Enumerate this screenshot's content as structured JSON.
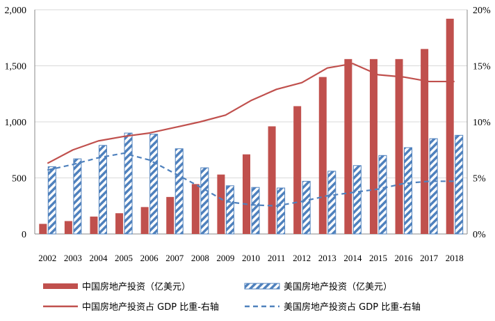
{
  "chart_data": {
    "type": "bar",
    "title": "",
    "categories": [
      "2002",
      "2003",
      "2004",
      "2005",
      "2006",
      "2007",
      "2008",
      "2009",
      "2010",
      "2011",
      "2012",
      "2013",
      "2014",
      "2015",
      "2016",
      "2017",
      "2018"
    ],
    "y_left": {
      "min": 0,
      "max": 2000,
      "ticks": [
        0,
        500,
        1000,
        1500,
        2000
      ],
      "tick_labels": [
        "0",
        "500",
        "1,000",
        "1,500",
        "2,000"
      ]
    },
    "y_right": {
      "min": 0,
      "max": 20,
      "ticks": [
        0,
        5,
        10,
        15,
        20
      ],
      "tick_labels": [
        "0%",
        "5%",
        "10%",
        "15%",
        "20%"
      ]
    },
    "grid": "horizontal",
    "legend_position": "bottom",
    "series": [
      {
        "name": "中国房地产投资（亿美元）",
        "kind": "bar",
        "axis": "left",
        "color": "#c0504d",
        "values": [
          90,
          115,
          155,
          185,
          240,
          330,
          445,
          530,
          710,
          960,
          1140,
          1400,
          1560,
          1560,
          1560,
          1650,
          1920
        ]
      },
      {
        "name": "美国房地产投资（亿美元）",
        "kind": "bar",
        "axis": "left",
        "color": "#4f81bd",
        "pattern": "diagonal-hatch",
        "values": [
          600,
          670,
          790,
          900,
          890,
          760,
          590,
          430,
          415,
          410,
          470,
          560,
          610,
          700,
          770,
          850,
          880
        ]
      },
      {
        "name": "中国房地产投资占 GDP 比重-右轴",
        "kind": "line",
        "axis": "right",
        "color": "#c0504d",
        "style": "solid",
        "values": [
          6.3,
          7.5,
          8.3,
          8.7,
          9.0,
          9.5,
          10.0,
          10.6,
          11.9,
          12.9,
          13.5,
          14.8,
          15.2,
          14.2,
          14.0,
          13.6,
          13.6
        ]
      },
      {
        "name": "美国房地产投资占 GDP 比重-右轴",
        "kind": "line",
        "axis": "right",
        "color": "#4f81bd",
        "style": "dashed",
        "values": [
          5.7,
          6.2,
          6.8,
          7.2,
          6.6,
          5.4,
          4.2,
          2.9,
          2.6,
          2.5,
          2.9,
          3.4,
          3.7,
          4.0,
          4.5,
          4.7,
          4.7
        ]
      }
    ]
  }
}
